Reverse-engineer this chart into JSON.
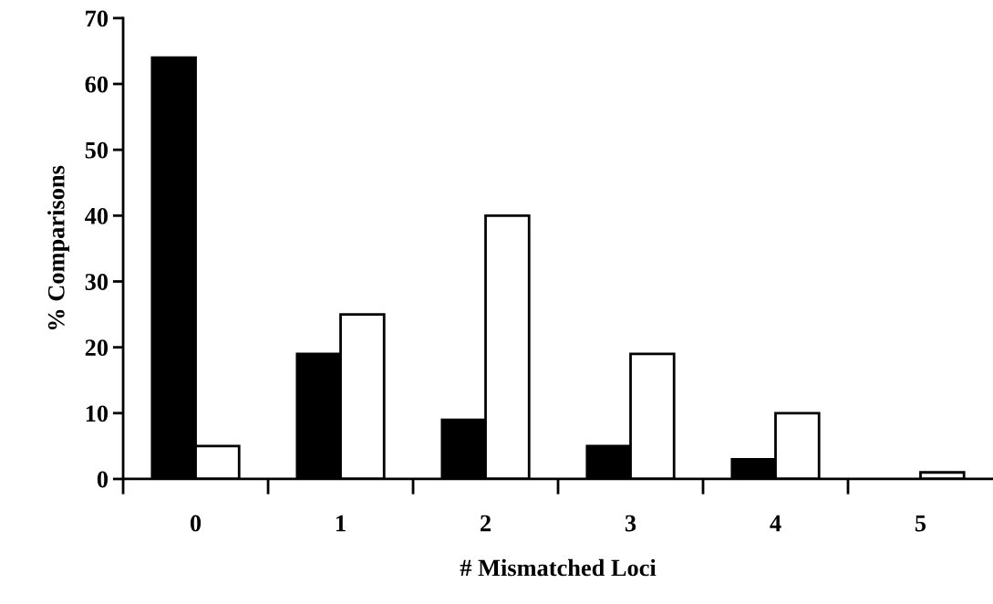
{
  "chart_data": {
    "type": "bar",
    "xlabel": "# Mismatched Loci",
    "ylabel": "% Comparisons",
    "categories": [
      "0",
      "1",
      "2",
      "3",
      "4",
      "5"
    ],
    "series": [
      {
        "color": "#000000",
        "values": [
          64,
          19,
          9,
          5,
          3,
          0
        ]
      },
      {
        "color": "#ffffff",
        "values": [
          5,
          25,
          40,
          19,
          10,
          1
        ]
      }
    ],
    "ylim": [
      0,
      70
    ],
    "yticks": [
      0,
      10,
      20,
      30,
      40,
      50,
      60,
      70
    ],
    "grid": false
  }
}
